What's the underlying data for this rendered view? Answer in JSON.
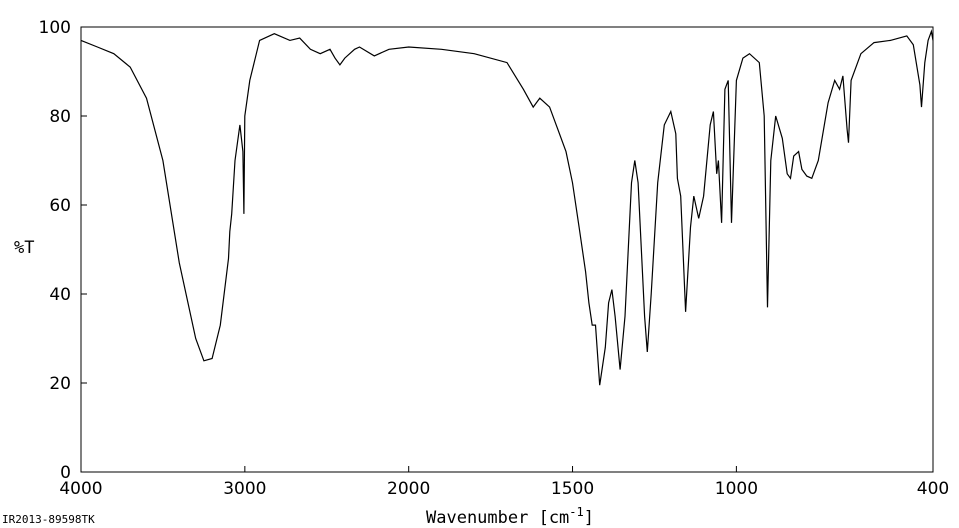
{
  "chart_data": {
    "type": "line",
    "ylabel": "%T",
    "xlabel": "Wavenumber [cm",
    "xlabel_sup": "-1",
    "xlabel_end": "]",
    "note": "IR2013-89598TK",
    "xlim": [
      4000,
      400
    ],
    "xticks": [
      4000,
      3000,
      2000,
      1500,
      1000,
      400
    ],
    "xbreak": 2000,
    "xbreak_scale": 2,
    "ylim": [
      0,
      100
    ],
    "yticks": [
      0,
      20,
      40,
      60,
      80,
      100
    ],
    "series": [
      {
        "color": "#000000",
        "x": [
          4000,
          3900,
          3800,
          3700,
          3600,
          3500,
          3400,
          3300,
          3250,
          3200,
          3150,
          3100,
          3092,
          3080,
          3060,
          3030,
          3012,
          3006,
          3000,
          2970,
          2910,
          2850,
          2820,
          2725,
          2665,
          2600,
          2540,
          2480,
          2450,
          2420,
          2390,
          2330,
          2300,
          2210,
          2120,
          2000,
          1900,
          1800,
          1700,
          1650,
          1620,
          1600,
          1570,
          1550,
          1520,
          1500,
          1480,
          1460,
          1450,
          1440,
          1430,
          1417,
          1400,
          1390,
          1380,
          1370,
          1355,
          1340,
          1320,
          1310,
          1300,
          1280,
          1272,
          1260,
          1240,
          1220,
          1200,
          1185,
          1180,
          1170,
          1155,
          1140,
          1130,
          1115,
          1100,
          1080,
          1070,
          1060,
          1055,
          1045,
          1035,
          1025,
          1015,
          1000,
          980,
          960,
          930,
          915,
          905,
          895,
          880,
          860,
          845,
          835,
          825,
          810,
          800,
          785,
          770,
          750,
          720,
          700,
          685,
          675,
          662,
          658,
          650,
          620,
          580,
          530,
          480,
          460,
          440,
          435,
          425,
          415,
          405,
          400
        ],
        "values": [
          97,
          95.5,
          94,
          91,
          84,
          70,
          47,
          30,
          25,
          25.5,
          33,
          48,
          54,
          58,
          70,
          78,
          72,
          58,
          80,
          88,
          97,
          98,
          98.5,
          97,
          97.5,
          95,
          94,
          95,
          93,
          91.5,
          93,
          95,
          95.5,
          93.5,
          95,
          95.5,
          95,
          94,
          92,
          86,
          82,
          84,
          82,
          78,
          72,
          65,
          55,
          45,
          38,
          33,
          33,
          19.5,
          28,
          38,
          41,
          35,
          23,
          35,
          65,
          70,
          65,
          35,
          27,
          40,
          65,
          78,
          81,
          76,
          66,
          62,
          36,
          55,
          62,
          57,
          62,
          78,
          81,
          67,
          70,
          56,
          86,
          88,
          56,
          88,
          93,
          94,
          92,
          80,
          37,
          70,
          80,
          75,
          67,
          66,
          71,
          72,
          68,
          66.5,
          66,
          70,
          83,
          88,
          86,
          89,
          77,
          74,
          88,
          94,
          96.5,
          97,
          98,
          96,
          87,
          82,
          92,
          97,
          99,
          97
        ]
      }
    ]
  }
}
